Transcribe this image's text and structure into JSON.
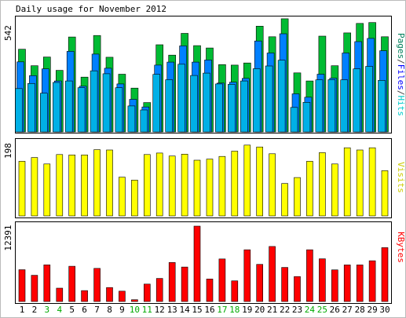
{
  "chart_data": [
    {
      "type": "bar",
      "title": "Daily usage for November 2012",
      "ymax_label": "542",
      "legend_words": [
        {
          "text": "Pages",
          "color": "#00805c"
        },
        {
          "text": "/",
          "color": "#444444"
        },
        {
          "text": "Files",
          "color": "#0000ff"
        },
        {
          "text": "/",
          "color": "#444444"
        },
        {
          "text": "Hits",
          "color": "#00cccc"
        }
      ],
      "ylim": [
        0,
        542
      ],
      "series": [
        {
          "name": "Hits",
          "color": "#00bb33",
          "values": [
            391,
            313,
            354,
            291,
            449,
            259,
            456,
            353,
            273,
            207,
            139,
            412,
            363,
            466,
            408,
            397,
            318,
            316,
            326,
            500,
            450,
            535,
            279,
            241,
            453,
            313,
            468,
            513,
            517,
            450
          ]
        },
        {
          "name": "Files",
          "color": "#0080ff",
          "values": [
            331,
            266,
            298,
            241,
            381,
            216,
            368,
            301,
            227,
            154,
            118,
            316,
            330,
            407,
            330,
            340,
            231,
            235,
            253,
            430,
            373,
            464,
            180,
            164,
            273,
            254,
            373,
            427,
            442,
            384
          ]
        },
        {
          "name": "Pages",
          "color": "#00b0e6",
          "values": [
            205,
            229,
            183,
            234,
            241,
            209,
            289,
            275,
            209,
            123,
            104,
            272,
            247,
            320,
            267,
            278,
            227,
            225,
            241,
            299,
            312,
            339,
            116,
            140,
            246,
            247,
            246,
            298,
            310,
            244
          ]
        }
      ]
    },
    {
      "type": "bar",
      "ymax_label": "198",
      "legend_words": [
        {
          "text": "Visits",
          "color": "#cccc00"
        }
      ],
      "ylim": [
        0,
        198
      ],
      "series": [
        {
          "name": "Visits",
          "color": "#ffff00",
          "values": [
            145,
            155,
            138,
            163,
            162,
            162,
            176,
            175,
            103,
            95,
            163,
            167,
            159,
            164,
            148,
            151,
            158,
            172,
            188,
            183,
            165,
            86,
            102,
            145,
            168,
            138,
            181,
            175,
            181,
            120
          ]
        }
      ]
    },
    {
      "type": "bar",
      "ymax_label": "12391",
      "legend_words": [
        {
          "text": "KBytes",
          "color": "#ff0000"
        }
      ],
      "ylim": [
        0,
        12391
      ],
      "series": [
        {
          "name": "KBytes",
          "color": "#ff0000",
          "values": [
            5230,
            4310,
            6030,
            2200,
            5800,
            1800,
            5450,
            2300,
            1700,
            300,
            2860,
            3800,
            6420,
            5660,
            12391,
            3700,
            7000,
            3400,
            8500,
            6100,
            9050,
            5600,
            4100,
            8500,
            7020,
            5200,
            6020,
            6020,
            6700,
            8850
          ]
        }
      ]
    }
  ],
  "x_axis": {
    "categories": [
      "1",
      "2",
      "3",
      "4",
      "5",
      "6",
      "7",
      "8",
      "9",
      "10",
      "11",
      "12",
      "13",
      "14",
      "15",
      "16",
      "17",
      "18",
      "19",
      "20",
      "21",
      "22",
      "23",
      "24",
      "25",
      "26",
      "27",
      "28",
      "29",
      "30"
    ],
    "weekend_days": [
      "3",
      "4",
      "10",
      "11",
      "17",
      "18",
      "24",
      "25"
    ],
    "weekday_color": "#000000",
    "weekend_color": "#00aa00"
  }
}
